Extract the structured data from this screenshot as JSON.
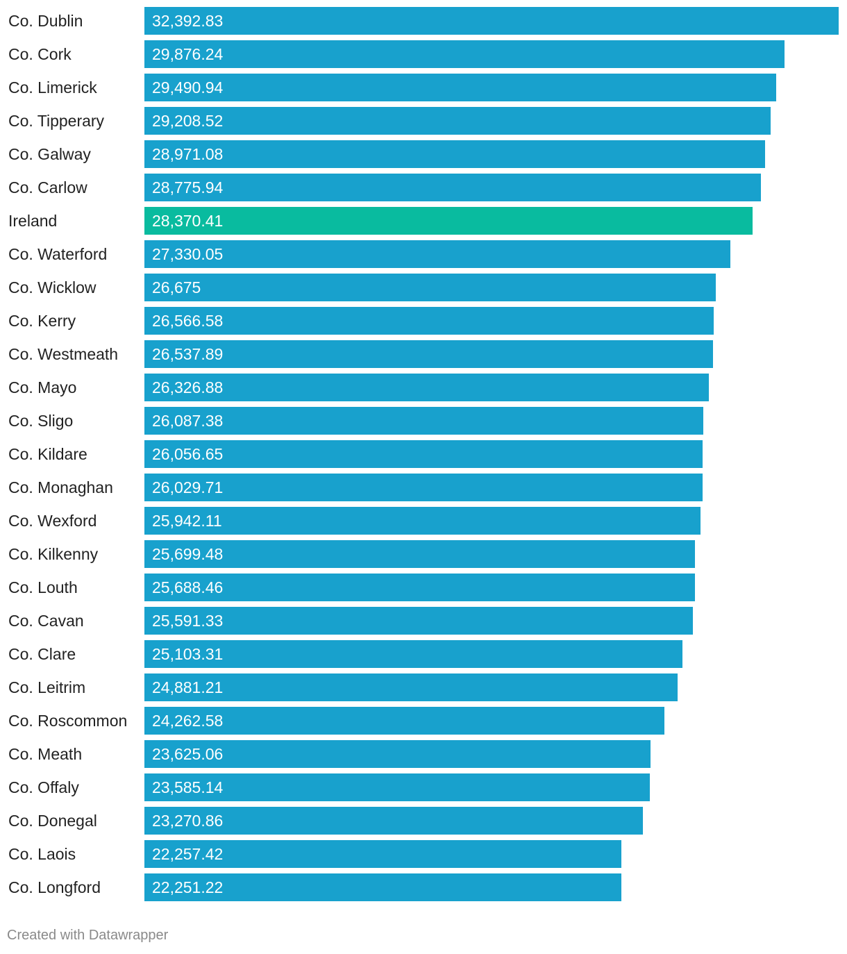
{
  "chart_data": {
    "type": "bar",
    "orientation": "horizontal",
    "categories": [
      "Co. Dublin",
      "Co. Cork",
      "Co. Limerick",
      "Co. Tipperary",
      "Co. Galway",
      "Co. Carlow",
      "Ireland",
      "Co. Waterford",
      "Co. Wicklow",
      "Co. Kerry",
      "Co. Westmeath",
      "Co. Mayo",
      "Co. Sligo",
      "Co. Kildare",
      "Co. Monaghan",
      "Co. Wexford",
      "Co. Kilkenny",
      "Co. Louth",
      "Co. Cavan",
      "Co. Clare",
      "Co. Leitrim",
      "Co. Roscommon",
      "Co. Meath",
      "Co. Offaly",
      "Co. Donegal",
      "Co. Laois",
      "Co. Longford"
    ],
    "values": [
      32392.83,
      29876.24,
      29490.94,
      29208.52,
      28971.08,
      28775.94,
      28370.41,
      27330.05,
      26675,
      26566.58,
      26537.89,
      26326.88,
      26087.38,
      26056.65,
      26029.71,
      25942.11,
      25699.48,
      25688.46,
      25591.33,
      25103.31,
      24881.21,
      24262.58,
      23625.06,
      23585.14,
      23270.86,
      22257.42,
      22251.22
    ],
    "value_labels": [
      "32,392.83",
      "29,876.24",
      "29,490.94",
      "29,208.52",
      "28,971.08",
      "28,775.94",
      "28,370.41",
      "27,330.05",
      "26,675",
      "26,566.58",
      "26,537.89",
      "26,326.88",
      "26,087.38",
      "26,056.65",
      "26,029.71",
      "25,942.11",
      "25,699.48",
      "25,688.46",
      "25,591.33",
      "25,103.31",
      "24,881.21",
      "24,262.58",
      "23,625.06",
      "23,585.14",
      "23,270.86",
      "22,257.42",
      "22,251.22"
    ],
    "xlim": [
      0,
      32392.83
    ],
    "grid": false,
    "colors": {
      "default": "#18a1cd",
      "highlight": "#09bb9f"
    },
    "highlight_category": "Ireland"
  },
  "footer": {
    "credit": "Created with Datawrapper"
  }
}
